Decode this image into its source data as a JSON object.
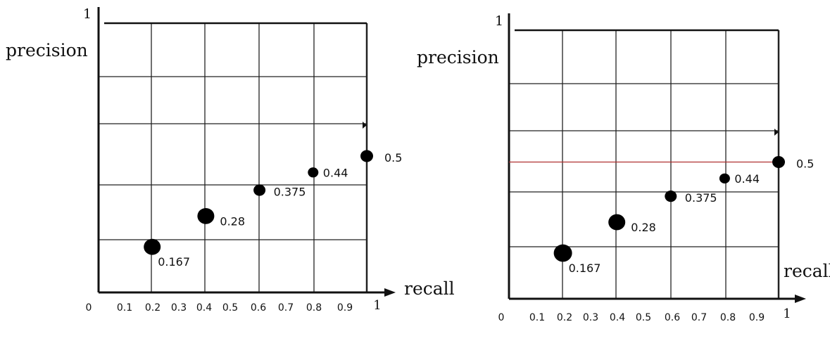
{
  "chart_data": [
    {
      "type": "scatter",
      "xlabel": "recall",
      "ylabel": "precision",
      "y_top_label": "1",
      "x_origin_label": "0",
      "x_end_label": "1",
      "x_tick_labels": [
        "0.1",
        "0.2",
        "0.3",
        "0.4",
        "0.5",
        "0.6",
        "0.7",
        "0.8",
        "0.9"
      ],
      "xlim": [
        0,
        1
      ],
      "ylim": [
        0,
        1
      ],
      "grid": true,
      "points": [
        {
          "x": 0.2,
          "y": 0.167,
          "label": "0.167"
        },
        {
          "x": 0.4,
          "y": 0.28,
          "label": "0.28"
        },
        {
          "x": 0.6,
          "y": 0.375,
          "label": "0.375"
        },
        {
          "x": 0.8,
          "y": 0.44,
          "label": "0.44"
        },
        {
          "x": 1.0,
          "y": 0.5,
          "label": "0.5"
        }
      ],
      "reference_line": null
    },
    {
      "type": "scatter",
      "xlabel": "recall",
      "ylabel": "precision",
      "y_top_label": "1",
      "x_origin_label": "0",
      "x_end_label": "1",
      "x_tick_labels": [
        "0.1",
        "0.2",
        "0.3",
        "0.4",
        "0.5",
        "0.6",
        "0.7",
        "0.8",
        "0.9"
      ],
      "xlim": [
        0,
        1
      ],
      "ylim": [
        0,
        1
      ],
      "grid": true,
      "points": [
        {
          "x": 0.2,
          "y": 0.167,
          "label": "0.167"
        },
        {
          "x": 0.4,
          "y": 0.28,
          "label": "0.28"
        },
        {
          "x": 0.6,
          "y": 0.375,
          "label": "0.375"
        },
        {
          "x": 0.8,
          "y": 0.44,
          "label": "0.44"
        },
        {
          "x": 1.0,
          "y": 0.5,
          "label": "0.5"
        }
      ],
      "reference_line": {
        "y": 0.5,
        "color": "#b03030"
      }
    }
  ]
}
